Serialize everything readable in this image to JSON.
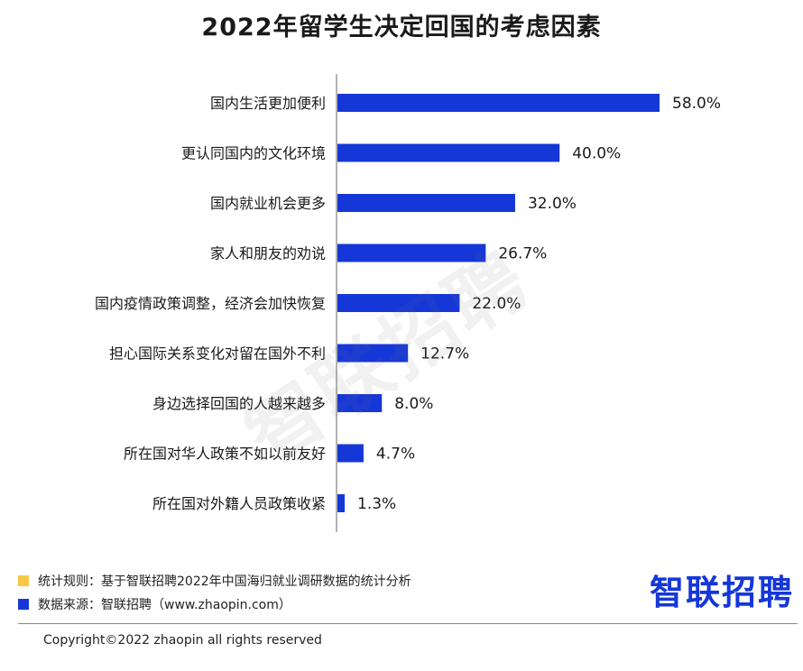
{
  "chart_data": {
    "type": "bar",
    "orientation": "horizontal",
    "title": "2022年留学生决定回国的考虑因素",
    "categories": [
      "国内生活更加便利",
      "更认同国内的文化环境",
      "国内就业机会更多",
      "家人和朋友的劝说",
      "国内疫情政策调整，经济会加快恢复",
      "担心国际关系变化对留在国外不利",
      "身边选择回国的人越来越多",
      "所在国对华人政策不如以前友好",
      "所在国对外籍人员政策收紧"
    ],
    "values": [
      58.0,
      40.0,
      32.0,
      26.7,
      22.0,
      12.7,
      8.0,
      4.7,
      1.3
    ],
    "value_labels": [
      "58.0%",
      "40.0%",
      "32.0%",
      "26.7%",
      "22.0%",
      "12.7%",
      "8.0%",
      "4.7%",
      "1.3%"
    ],
    "xlim": [
      0,
      58
    ],
    "bar_color": "#1537d8",
    "grid": false
  },
  "watermark": "智联招聘",
  "legend": {
    "items": [
      {
        "color": "#f7c846",
        "text": "统计规则：基于智联招聘2022年中国海归就业调研数据的统计分析"
      },
      {
        "color": "#1537d8",
        "text": "数据来源：智联招聘（www.zhaopin.com）"
      }
    ]
  },
  "brand": {
    "text": "智联招聘",
    "color": "#1537d8"
  },
  "footer": {
    "copyright": "Copyright©2022 zhaopin all rights reserved"
  }
}
